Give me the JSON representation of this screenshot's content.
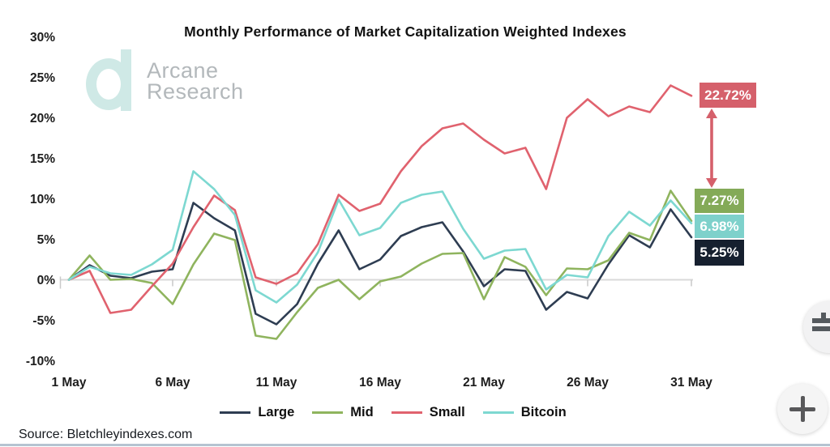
{
  "watermark": {
    "brand_line1": "Arcane",
    "brand_line2": "Research"
  },
  "source_note": "Source: Bletchleyindexes.com",
  "controls": {
    "zoom_in_label": "+",
    "adjust_icon": "plus-minus"
  },
  "chart_data": {
    "type": "line",
    "title": "Monthly Performance of Market Capitalization Weighted Indexes",
    "xlabel": "",
    "ylabel": "",
    "x_unit": "day of May",
    "x": [
      1,
      2,
      3,
      4,
      5,
      6,
      7,
      8,
      9,
      10,
      11,
      12,
      13,
      14,
      15,
      16,
      17,
      18,
      19,
      20,
      21,
      22,
      23,
      24,
      25,
      26,
      27,
      28,
      29,
      30,
      31
    ],
    "x_tick_days": [
      1,
      6,
      11,
      16,
      21,
      26,
      31
    ],
    "x_tick_labels": [
      "1 May",
      "6 May",
      "11 May",
      "16 May",
      "21 May",
      "26 May",
      "31 May"
    ],
    "y_tick_values": [
      30,
      25,
      20,
      15,
      10,
      5,
      0,
      -5,
      -10
    ],
    "y_tick_labels": [
      "30%",
      "25%",
      "20%",
      "15%",
      "10%",
      "5%",
      "0%",
      "-5%",
      "-10%"
    ],
    "ylim": [
      -10,
      30
    ],
    "xlim": [
      1,
      31
    ],
    "grid": "zero baseline only, light gray, with small ticks at labeled days",
    "legend_position": "bottom",
    "series": [
      {
        "name": "Large",
        "color": "#2e3d52",
        "values": [
          0,
          1.8,
          0.5,
          0.2,
          1.0,
          1.3,
          9.5,
          7.6,
          6.1,
          -4.2,
          -5.5,
          -3.0,
          2.0,
          6.1,
          1.3,
          2.5,
          5.4,
          6.5,
          7.1,
          3.5,
          -0.8,
          1.3,
          1.1,
          -3.7,
          -1.5,
          -2.3,
          1.9,
          5.5,
          4.0,
          8.7,
          5.25
        ]
      },
      {
        "name": "Mid",
        "color": "#8fb45e",
        "values": [
          0,
          3.0,
          0.0,
          0.1,
          -0.4,
          -3.0,
          1.9,
          5.7,
          4.9,
          -6.9,
          -7.3,
          -4.0,
          -1.0,
          0.0,
          -2.4,
          -0.2,
          0.4,
          2.0,
          3.2,
          3.3,
          -2.4,
          2.8,
          1.6,
          -1.9,
          1.4,
          1.3,
          2.4,
          5.8,
          4.9,
          11.0,
          7.27
        ]
      },
      {
        "name": "Small",
        "color": "#e0626e",
        "values": [
          0,
          1.1,
          -4.1,
          -3.7,
          -0.8,
          2.0,
          6.5,
          10.4,
          8.6,
          0.3,
          -0.5,
          0.8,
          4.4,
          10.5,
          8.5,
          9.4,
          13.4,
          16.5,
          18.7,
          19.3,
          17.3,
          15.6,
          16.3,
          11.2,
          20.0,
          22.3,
          20.2,
          21.4,
          20.7,
          24.0,
          22.72
        ]
      },
      {
        "name": "Bitcoin",
        "color": "#7dd8d1",
        "values": [
          0,
          1.6,
          0.8,
          0.6,
          1.9,
          3.7,
          13.4,
          11.2,
          8.0,
          -1.3,
          -2.8,
          -0.6,
          3.4,
          9.9,
          5.5,
          6.4,
          9.5,
          10.5,
          10.9,
          6.3,
          2.6,
          3.6,
          3.8,
          -1.2,
          0.6,
          0.3,
          5.4,
          8.4,
          6.7,
          9.8,
          6.98
        ]
      }
    ],
    "end_labels": [
      {
        "series": "Small",
        "text": "22.72%",
        "color": "#d5606b"
      },
      {
        "series": "Mid",
        "text": "7.27%",
        "color": "#84aa58"
      },
      {
        "series": "Bitcoin",
        "text": "6.98%",
        "color": "#7ed1cb"
      },
      {
        "series": "Large",
        "text": "5.25%",
        "color": "#16202f"
      }
    ],
    "annotation_arrow_color": "#d5606b"
  }
}
